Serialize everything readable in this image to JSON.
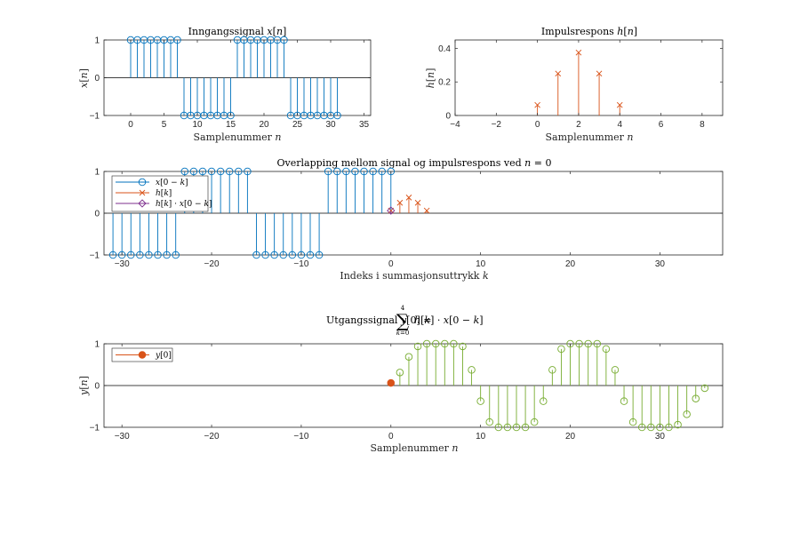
{
  "colors": {
    "blue": "#0072BD",
    "orange": "#D95319",
    "purple": "#7E2F8E",
    "green": "#77AC30"
  },
  "chart_data": [
    {
      "id": "p1",
      "type": "stem",
      "title": "Inngangssignal x[n]",
      "xlabel": "Samplenummer n",
      "ylabel": "x[n]",
      "xlim": [
        -4,
        36
      ],
      "ylim": [
        -1,
        1
      ],
      "xticks": [
        0,
        5,
        10,
        15,
        20,
        25,
        30,
        35
      ],
      "yticks": [
        -1,
        0,
        1
      ],
      "series": [
        {
          "marker": "circle",
          "color": "blue",
          "x": [
            0,
            1,
            2,
            3,
            4,
            5,
            6,
            7,
            8,
            9,
            10,
            11,
            12,
            13,
            14,
            15,
            16,
            17,
            18,
            19,
            20,
            21,
            22,
            23,
            24,
            25,
            26,
            27,
            28,
            29,
            30,
            31
          ],
          "y": [
            1,
            1,
            1,
            1,
            1,
            1,
            1,
            1,
            -1,
            -1,
            -1,
            -1,
            -1,
            -1,
            -1,
            -1,
            1,
            1,
            1,
            1,
            1,
            1,
            1,
            1,
            -1,
            -1,
            -1,
            -1,
            -1,
            -1,
            -1,
            -1
          ]
        }
      ]
    },
    {
      "id": "p2",
      "type": "stem",
      "title": "Impulsrespons h[n]",
      "xlabel": "Samplenummer n",
      "ylabel": "h[n]",
      "xlim": [
        -4,
        9
      ],
      "ylim": [
        0,
        0.45
      ],
      "xticks": [
        -4,
        -2,
        0,
        2,
        4,
        6,
        8
      ],
      "yticks": [
        0,
        0.2,
        0.4
      ],
      "series": [
        {
          "marker": "x",
          "color": "orange",
          "x": [
            0,
            1,
            2,
            3,
            4
          ],
          "y": [
            0.0625,
            0.25,
            0.375,
            0.25,
            0.0625
          ]
        }
      ]
    },
    {
      "id": "p3",
      "type": "stem",
      "title": "Overlapping mellom signal og impulsrespons ved n = 0",
      "xlabel": "Indeks i summasjonsuttrykk k",
      "ylabel": "",
      "xlim": [
        -32,
        37
      ],
      "ylim": [
        -1,
        1
      ],
      "xticks": [
        -30,
        -20,
        -10,
        0,
        10,
        20,
        30
      ],
      "yticks": [
        -1,
        0,
        1
      ],
      "legend": "top-left",
      "series": [
        {
          "name": "x[0 − k]",
          "marker": "circle",
          "color": "blue",
          "x": [
            -31,
            -30,
            -29,
            -28,
            -27,
            -26,
            -25,
            -24,
            -23,
            -22,
            -21,
            -20,
            -19,
            -18,
            -17,
            -16,
            -15,
            -14,
            -13,
            -12,
            -11,
            -10,
            -9,
            -8,
            -7,
            -6,
            -5,
            -4,
            -3,
            -2,
            -1,
            0
          ],
          "y": [
            -1,
            -1,
            -1,
            -1,
            -1,
            -1,
            -1,
            -1,
            1,
            1,
            1,
            1,
            1,
            1,
            1,
            1,
            -1,
            -1,
            -1,
            -1,
            -1,
            -1,
            -1,
            -1,
            1,
            1,
            1,
            1,
            1,
            1,
            1,
            1
          ]
        },
        {
          "name": "h[k]",
          "marker": "x",
          "color": "orange",
          "x": [
            0,
            1,
            2,
            3,
            4
          ],
          "y": [
            0.0625,
            0.25,
            0.375,
            0.25,
            0.0625
          ]
        },
        {
          "name": "h[k] · x[0 − k]",
          "marker": "diamond",
          "color": "purple",
          "x": [
            0
          ],
          "y": [
            0.0625
          ]
        }
      ]
    },
    {
      "id": "p4",
      "type": "stem",
      "title": "Utgangssignal y[0] = Σ h[k] · x[0 − k]",
      "title_sum_upper": "4",
      "title_sum_lower": "k=0",
      "xlabel": "Samplenummer n",
      "ylabel": "y[n]",
      "xlim": [
        -32,
        37
      ],
      "ylim": [
        -1,
        1
      ],
      "xticks": [
        -30,
        -20,
        -10,
        0,
        10,
        20,
        30
      ],
      "yticks": [
        -1,
        0,
        1
      ],
      "legend": "top-left",
      "series": [
        {
          "marker": "circle",
          "color": "green",
          "x": [
            1,
            2,
            3,
            4,
            5,
            6,
            7,
            8,
            9,
            10,
            11,
            12,
            13,
            14,
            15,
            16,
            17,
            18,
            19,
            20,
            21,
            22,
            23,
            24,
            25,
            26,
            27,
            28,
            29,
            30,
            31,
            32,
            33,
            34,
            35
          ],
          "y": [
            0.3125,
            0.6875,
            0.9375,
            1,
            1,
            1,
            1,
            0.9375,
            0.375,
            -0.375,
            -0.875,
            -1,
            -1,
            -1,
            -1,
            -0.875,
            -0.375,
            0.375,
            0.875,
            1,
            1,
            1,
            1,
            0.875,
            0.375,
            -0.375,
            -0.875,
            -1,
            -1,
            -1,
            -1,
            -0.9375,
            -0.6875,
            -0.3125,
            -0.0625
          ]
        },
        {
          "name": "y[0]",
          "marker": "filled-circle",
          "color": "orange",
          "x": [
            0
          ],
          "y": [
            0.0625
          ]
        }
      ]
    }
  ]
}
